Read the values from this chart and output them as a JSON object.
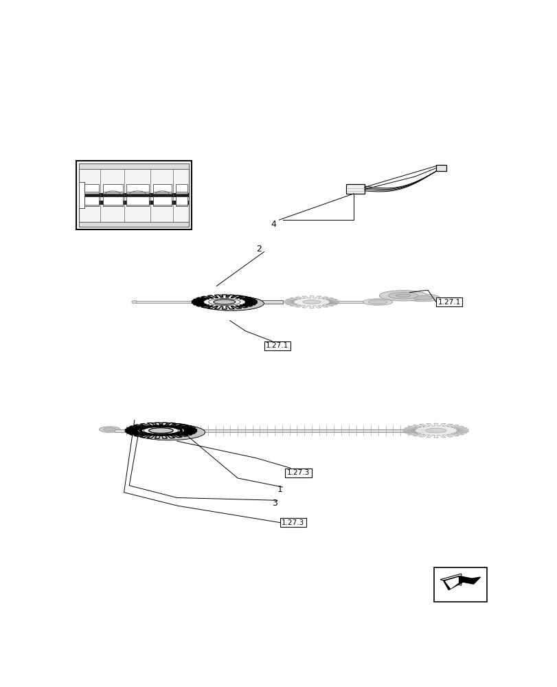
{
  "background_color": "#ffffff",
  "fig_width": 8.12,
  "fig_height": 10.0,
  "dpi": 100,
  "labels": {
    "ref_box_1a": "1.27.1",
    "ref_box_1b": "1.27.1",
    "ref_box_3a": "1.27.3",
    "ref_box_3b": "1.27.3",
    "num1": "1",
    "num2": "2",
    "num3": "3",
    "num4": "4"
  }
}
